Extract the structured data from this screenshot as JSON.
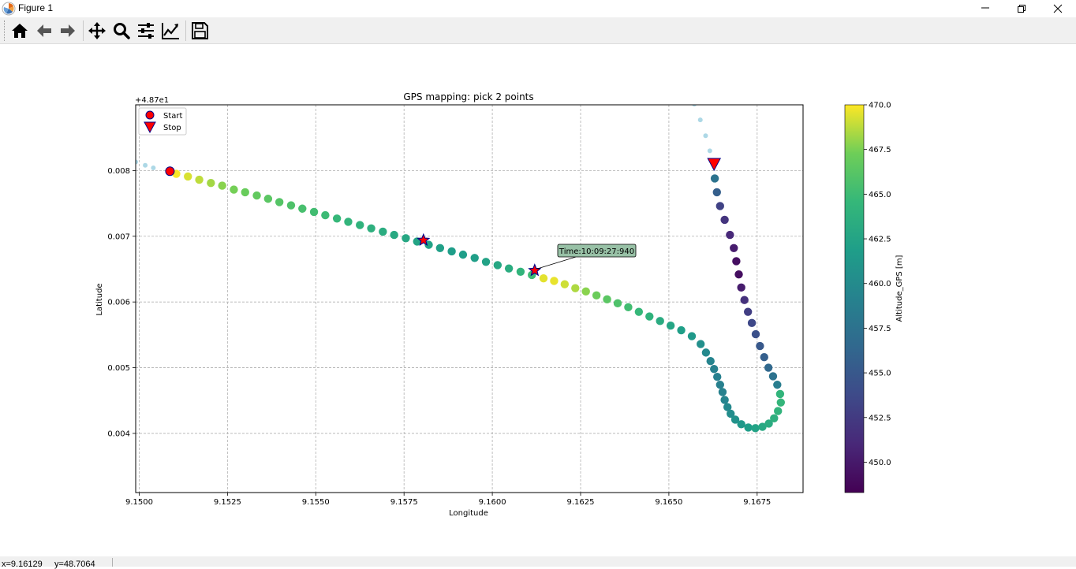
{
  "window": {
    "title": "Figure 1"
  },
  "toolbar": {
    "buttons": [
      {
        "name": "home-button",
        "icon": "home-icon"
      },
      {
        "name": "back-button",
        "icon": "arrow-left-icon"
      },
      {
        "name": "forward-button",
        "icon": "arrow-right-icon"
      },
      {
        "name": "pan-button",
        "icon": "move-icon"
      },
      {
        "name": "zoom-button",
        "icon": "magnifier-icon"
      },
      {
        "name": "subplots-button",
        "icon": "sliders-icon"
      },
      {
        "name": "edit-axes-button",
        "icon": "line-chart-icon"
      },
      {
        "name": "save-button",
        "icon": "floppy-disk-icon"
      }
    ]
  },
  "status": {
    "coords": "x=9.16129     y=48.7064"
  },
  "chart_data": {
    "type": "scatter",
    "title": "GPS mapping: pick 2 points",
    "xlabel": "Longitude",
    "ylabel": "Latitude",
    "y_offset_label": "+4.87e1",
    "xlim": [
      9.1499,
      9.1688
    ],
    "ylim": [
      0.0031,
      0.009
    ],
    "xticks": [
      9.15,
      9.1525,
      9.155,
      9.1575,
      9.16,
      9.1625,
      9.165,
      9.1675
    ],
    "xtick_labels": [
      "9.1500",
      "9.1525",
      "9.1550",
      "9.1575",
      "9.1600",
      "9.1625",
      "9.1650",
      "9.1675"
    ],
    "yticks": [
      0.004,
      0.005,
      0.006,
      0.007,
      0.008
    ],
    "ytick_labels": [
      "0.004",
      "0.005",
      "0.006",
      "0.007",
      "0.008"
    ],
    "grid": true,
    "legend": {
      "position": "top-left",
      "entries": [
        {
          "label": "Start",
          "marker": "circle",
          "color": "#ff0000",
          "edge": "#00008b"
        },
        {
          "label": "Stop",
          "marker": "triangle-down",
          "color": "#ff0000",
          "edge": "#00008b"
        }
      ]
    },
    "colorbar": {
      "label": "Altitude_GPS [m]",
      "colormap": "viridis",
      "range": [
        448.3,
        470.0
      ],
      "ticks": [
        450.0,
        452.5,
        455.0,
        457.5,
        460.0,
        462.5,
        465.0,
        467.5,
        470.0
      ],
      "tick_labels": [
        "450.0",
        "452.5",
        "455.0",
        "457.5",
        "460.0",
        "462.5",
        "465.0",
        "467.5",
        "470.0"
      ]
    },
    "series": [
      {
        "role": "outside-selection",
        "color": "#add8e6",
        "points": [
          [
            9.1499,
            0.00813
          ],
          [
            9.15017,
            0.00808
          ],
          [
            9.1504,
            0.00804
          ],
          [
            9.16572,
            0.00901
          ],
          [
            9.16589,
            0.00877
          ],
          [
            9.16604,
            0.00853
          ],
          [
            9.16616,
            0.0083
          ]
        ]
      },
      {
        "role": "selected-track",
        "points": [
          [
            9.15105,
            0.00795,
            469.9
          ],
          [
            9.15138,
            0.00791,
            469.3
          ],
          [
            9.1517,
            0.00786,
            468.8
          ],
          [
            9.15203,
            0.00781,
            468.3
          ],
          [
            9.15235,
            0.00777,
            467.8
          ],
          [
            9.15268,
            0.00771,
            467.4
          ],
          [
            9.153,
            0.00767,
            467.0
          ],
          [
            9.15333,
            0.00762,
            466.7
          ],
          [
            9.15365,
            0.00757,
            466.4
          ],
          [
            9.15397,
            0.00752,
            466.1
          ],
          [
            9.1543,
            0.00747,
            465.8
          ],
          [
            9.15462,
            0.00742,
            465.5
          ],
          [
            9.15495,
            0.00737,
            465.2
          ],
          [
            9.15527,
            0.00732,
            464.9
          ],
          [
            9.1556,
            0.00727,
            464.6
          ],
          [
            9.15592,
            0.00722,
            464.3
          ],
          [
            9.15625,
            0.00717,
            464.0
          ],
          [
            9.15657,
            0.00712,
            463.7
          ],
          [
            9.1569,
            0.00707,
            463.4
          ],
          [
            9.15722,
            0.00702,
            463.1
          ],
          [
            9.15755,
            0.00697,
            462.8
          ],
          [
            9.15787,
            0.00692,
            462.5
          ],
          [
            9.1582,
            0.00687,
            462.3
          ],
          [
            9.15852,
            0.00682,
            462.1
          ],
          [
            9.15885,
            0.00677,
            461.9
          ],
          [
            9.15917,
            0.00672,
            461.9
          ],
          [
            9.1595,
            0.00667,
            462.0
          ],
          [
            9.15982,
            0.00661,
            462.3
          ],
          [
            9.16015,
            0.00656,
            462.8
          ],
          [
            9.16047,
            0.00651,
            463.4
          ],
          [
            9.1608,
            0.00646,
            464.2
          ],
          [
            9.16112,
            0.00641,
            465.0
          ],
          [
            9.16145,
            0.00636,
            469.5
          ],
          [
            9.16175,
            0.00632,
            469.6
          ],
          [
            9.16205,
            0.00627,
            469.1
          ],
          [
            9.16235,
            0.00621,
            468.5
          ],
          [
            9.16265,
            0.00616,
            467.8
          ],
          [
            9.16295,
            0.0061,
            467.1
          ],
          [
            9.16325,
            0.00604,
            466.4
          ],
          [
            9.16355,
            0.00598,
            465.8
          ],
          [
            9.16385,
            0.00592,
            465.2
          ],
          [
            9.16415,
            0.00585,
            464.6
          ],
          [
            9.16445,
            0.00578,
            464.0
          ],
          [
            9.16475,
            0.00571,
            463.3
          ],
          [
            9.16505,
            0.00564,
            462.6
          ],
          [
            9.16535,
            0.00557,
            462.0
          ],
          [
            9.16565,
            0.00548,
            461.4
          ],
          [
            9.1659,
            0.00536,
            460.5
          ],
          [
            9.16605,
            0.00523,
            459.8
          ],
          [
            9.16618,
            0.0051,
            459.3
          ],
          [
            9.16628,
            0.00498,
            459.0
          ],
          [
            9.16637,
            0.00486,
            458.9
          ],
          [
            9.16645,
            0.00474,
            458.9
          ],
          [
            9.16652,
            0.00463,
            459.0
          ],
          [
            9.16658,
            0.00451,
            459.3
          ],
          [
            9.16666,
            0.0044,
            459.7
          ],
          [
            9.16675,
            0.0043,
            460.2
          ],
          [
            9.16688,
            0.00421,
            460.7
          ],
          [
            9.16705,
            0.00414,
            461.3
          ],
          [
            9.16725,
            0.00409,
            461.9
          ],
          [
            9.16745,
            0.00408,
            462.4
          ],
          [
            9.16765,
            0.0041,
            462.9
          ],
          [
            9.16783,
            0.00415,
            463.3
          ],
          [
            9.16798,
            0.00423,
            463.7
          ],
          [
            9.16809,
            0.00434,
            464.1
          ],
          [
            9.16817,
            0.00447,
            464.4
          ],
          [
            9.16815,
            0.0046,
            464.2
          ],
          [
            9.16807,
            0.00474,
            458.6
          ],
          [
            9.16795,
            0.00487,
            457.5
          ],
          [
            9.16782,
            0.005,
            456.5
          ],
          [
            9.1677,
            0.00516,
            455.7
          ],
          [
            9.16758,
            0.00533,
            455.0
          ],
          [
            9.16746,
            0.00551,
            454.3
          ],
          [
            9.16735,
            0.00568,
            453.6
          ],
          [
            9.16724,
            0.00585,
            452.8
          ],
          [
            9.16714,
            0.00603,
            451.7
          ],
          [
            9.16705,
            0.00622,
            450.2
          ],
          [
            9.16698,
            0.00642,
            449.2
          ],
          [
            9.16691,
            0.00662,
            449.3
          ],
          [
            9.16684,
            0.00682,
            450.2
          ],
          [
            9.16673,
            0.00702,
            451.1
          ],
          [
            9.16658,
            0.00725,
            452.0
          ],
          [
            9.16645,
            0.00746,
            453.1
          ],
          [
            9.16636,
            0.00767,
            455.6
          ],
          [
            9.1663,
            0.00788,
            457.6
          ]
        ]
      }
    ],
    "markers": {
      "start": [
        9.15087,
        0.00799
      ],
      "stop": [
        9.16628,
        0.0081
      ],
      "picked": [
        [
          9.15805,
          0.00694
        ],
        [
          9.1612,
          0.00648
        ]
      ]
    },
    "annotation": {
      "text": "Time:10:09:27:940",
      "target": [
        9.1612,
        0.00648
      ]
    }
  }
}
